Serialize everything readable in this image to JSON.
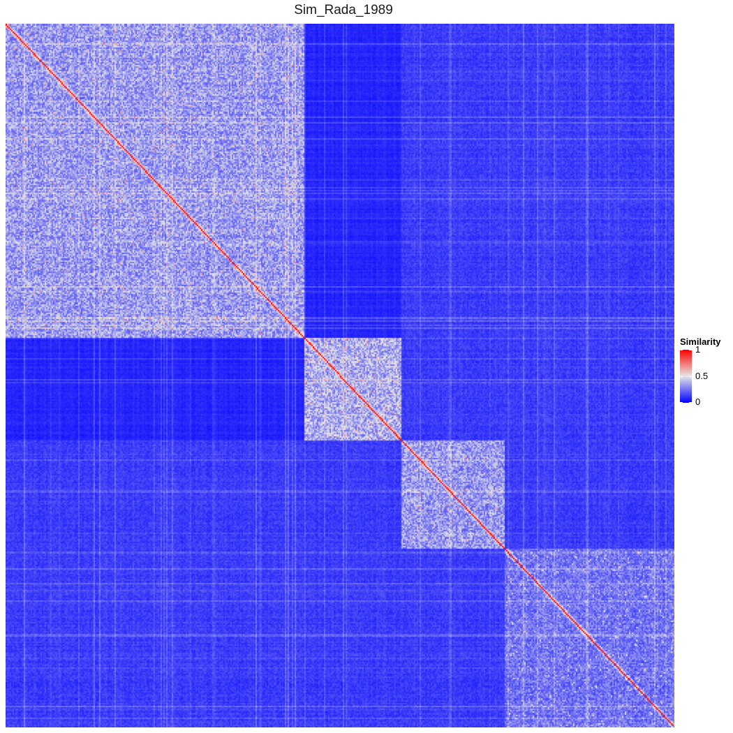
{
  "chart_data": {
    "type": "heatmap",
    "title": "Sim_Rada_1989",
    "xlabel": "",
    "ylabel": "",
    "grid": false,
    "matrix_shape": "square similarity matrix, clustered, strong diagonal",
    "diagonal_value": 1,
    "value_range": [
      0,
      1
    ],
    "blocks": [
      {
        "span": [
          0.0,
          0.445
        ],
        "mean_within": 0.3
      },
      {
        "span": [
          0.445,
          0.59
        ],
        "mean_within": 0.35
      },
      {
        "span": [
          0.59,
          0.745
        ],
        "mean_within": 0.3
      },
      {
        "span": [
          0.745,
          1.0
        ],
        "mean_within": 0.22
      }
    ],
    "background_level": 0.1,
    "legend": {
      "title": "Similarity",
      "position": "right",
      "ticks": [
        {
          "value": 1,
          "label": "1"
        },
        {
          "value": 0.5,
          "label": "0.5"
        },
        {
          "value": 0,
          "label": "0"
        }
      ],
      "colors": {
        "low": "#0000ff",
        "mid": "#e6e6e6",
        "high": "#ff0000"
      }
    }
  }
}
